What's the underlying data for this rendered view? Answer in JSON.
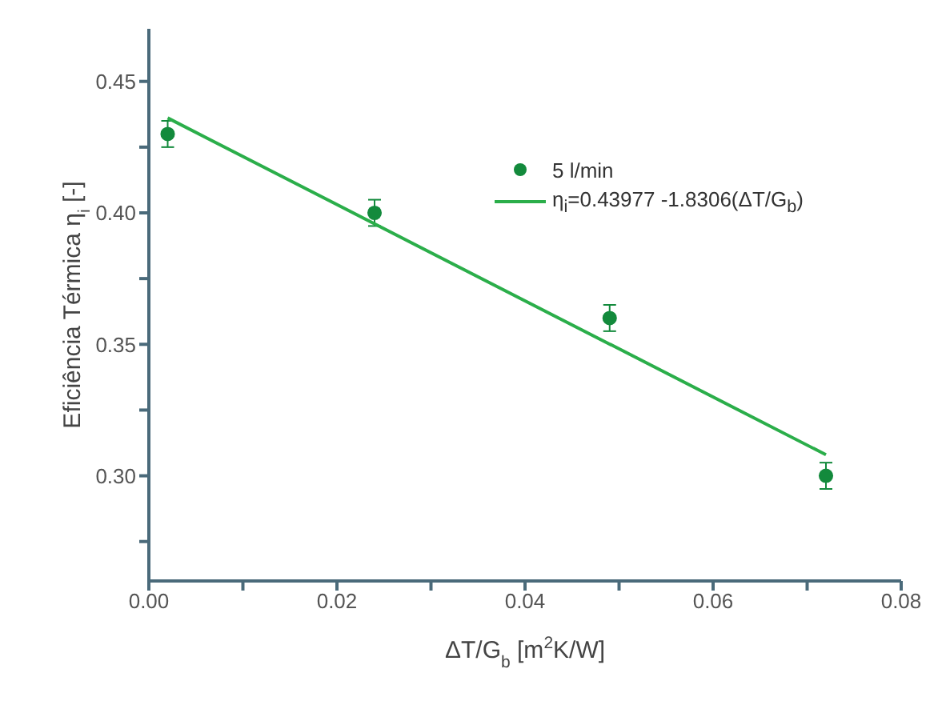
{
  "chart_data": {
    "type": "scatter",
    "xlabel": "ΔT/G$_{b}$ [m$^{2}$K/W]",
    "ylabel": "Eficiência Térmica η$_{i}$ [-]",
    "xlim": [
      0,
      0.08
    ],
    "ylim": [
      0.26,
      0.47
    ],
    "xticks": [
      {
        "value": 0,
        "label": "0.00"
      },
      {
        "value": 0.01,
        "label": null
      },
      {
        "value": 0.02,
        "label": "0.02"
      },
      {
        "value": 0.03,
        "label": null
      },
      {
        "value": 0.04,
        "label": "0.04"
      },
      {
        "value": 0.05,
        "label": null
      },
      {
        "value": 0.06,
        "label": "0.06"
      },
      {
        "value": 0.07,
        "label": null
      },
      {
        "value": 0.08,
        "label": "0.08"
      }
    ],
    "yticks": [
      {
        "value": 0.275,
        "label": null
      },
      {
        "value": 0.3,
        "label": "0.30"
      },
      {
        "value": 0.325,
        "label": null
      },
      {
        "value": 0.35,
        "label": "0.35"
      },
      {
        "value": 0.375,
        "label": null
      },
      {
        "value": 0.4,
        "label": "0.40"
      },
      {
        "value": 0.425,
        "label": null
      },
      {
        "value": 0.45,
        "label": "0.45"
      }
    ],
    "legend": "top right",
    "marker": "circle",
    "series": [
      {
        "name": "5 l/min",
        "color": "#138a3c",
        "x": [
          0.002,
          0.024,
          0.049,
          0.072
        ],
        "values": [
          0.43,
          0.4,
          0.36,
          0.3
        ],
        "errors": [
          0.005,
          0.005,
          0.005,
          0.005
        ]
      },
      {
        "name": "η$_{i}$=0.43977 -1.8306(ΔT/G$_{b}$)",
        "type": "line",
        "color": "#2bae4a",
        "line_style": "solid",
        "marker": "none",
        "x": [
          0.002,
          0.072
        ],
        "values": [
          0.4361,
          0.308
        ]
      }
    ]
  }
}
